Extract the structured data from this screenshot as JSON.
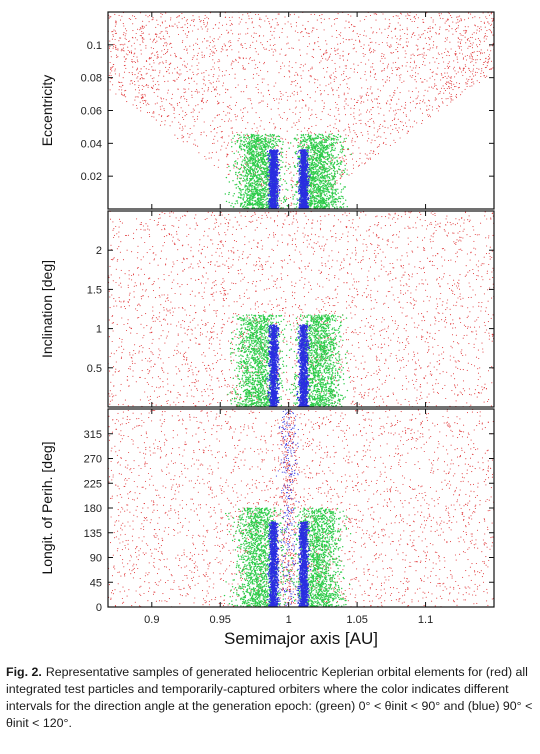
{
  "chart_data": {
    "type": "scatter",
    "xlabel": "Semimajor axis [AU]",
    "xlim": [
      0.868,
      1.15
    ],
    "xticks": [
      "0.9",
      "0.95",
      "1",
      "1.05",
      "1.1"
    ],
    "series_colors": {
      "red": "#e0383a",
      "green": "#2ecc4a",
      "blue": "#2a2ee0"
    },
    "panels": [
      {
        "ylabel": "Eccentricity",
        "ylim": [
          0,
          0.12
        ],
        "yticks": [
          "0.02",
          "0.04",
          "0.06",
          "0.08",
          "0.1"
        ]
      },
      {
        "ylabel": "Inclination [deg]",
        "ylim": [
          0,
          2.5
        ],
        "yticks": [
          "0.5",
          "1",
          "1.5",
          "2"
        ]
      },
      {
        "ylabel": "Longit. of Perih. [deg]",
        "ylim": [
          0,
          360
        ],
        "yticks": [
          "0",
          "45",
          "90",
          "135",
          "180",
          "225",
          "270",
          "315"
        ]
      }
    ]
  },
  "caption": {
    "label": "Fig. 2.",
    "text": "Representative samples of generated heliocentric Keplerian orbital elements for (red) all integrated test particles and temporarily-captured orbiters where the color indicates different intervals for the direction angle at the generation epoch: (green) 0° < θinit < 90° and (blue) 90° < θinit < 120°."
  }
}
